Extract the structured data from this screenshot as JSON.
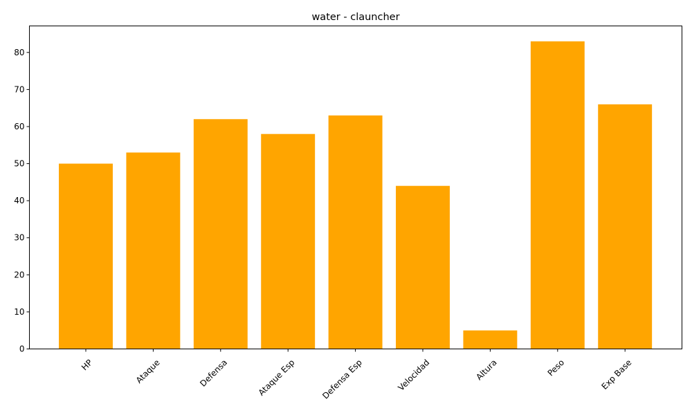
{
  "colors": {
    "bar": "#ffa500",
    "axis": "#000000",
    "background": "#ffffff"
  },
  "chart_data": {
    "type": "bar",
    "title": "water - clauncher",
    "xlabel": "",
    "ylabel": "",
    "categories": [
      "HP",
      "Ataque",
      "Defensa",
      "Ataque Esp",
      "Defensa Esp",
      "Velocidad",
      "Altura",
      "Peso",
      "Exp Base"
    ],
    "values": [
      50,
      53,
      62,
      58,
      63,
      44,
      5,
      83,
      66
    ],
    "ylim": [
      0,
      87.15
    ],
    "yticks": [
      0,
      10,
      20,
      30,
      40,
      50,
      60,
      70,
      80
    ],
    "xtick_rotation_degrees": 45,
    "grid": false,
    "legend": "none"
  }
}
